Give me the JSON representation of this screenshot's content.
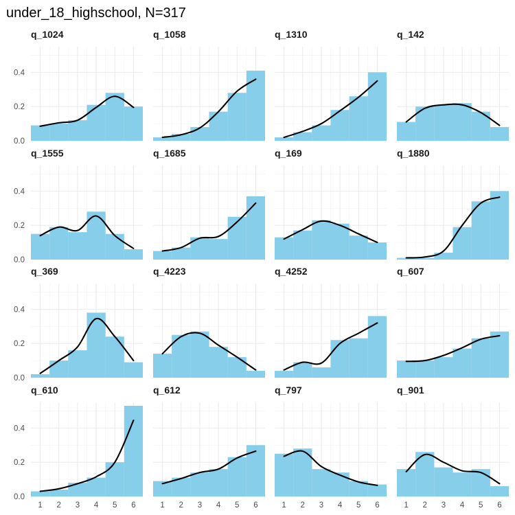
{
  "title": "under_18_highschool, N=317",
  "colors": {
    "bar": "#87CEEB",
    "density": "#000000",
    "grid_major": "#ebebeb",
    "grid_minor": "#f2f2f2",
    "background": "#ffffff"
  },
  "chart_data": {
    "type": "bar",
    "layout": "facet-grid 4x4, shared axes",
    "xlim": [
      0.5,
      6.5
    ],
    "ylim": [
      0,
      0.55
    ],
    "x_ticks": [
      1,
      2,
      3,
      4,
      5,
      6
    ],
    "x_tick_labels": [
      "1",
      "2",
      "3",
      "4",
      "5",
      "6"
    ],
    "y_ticks": [
      0,
      0.2,
      0.4
    ],
    "y_tick_labels": [
      "0.0",
      "0.2",
      "0.4"
    ],
    "grid": true,
    "legend": "none",
    "categories": [
      1,
      2,
      3,
      4,
      5,
      6
    ],
    "facets": [
      {
        "name": "q_1024",
        "bars": [
          0.09,
          0.1,
          0.12,
          0.21,
          0.28,
          0.2
        ],
        "density": [
          0.085,
          0.105,
          0.12,
          0.195,
          0.26,
          0.195
        ]
      },
      {
        "name": "q_1058",
        "bars": [
          0.02,
          0.04,
          0.08,
          0.17,
          0.28,
          0.41
        ],
        "density": [
          0.02,
          0.035,
          0.075,
          0.17,
          0.29,
          0.36
        ]
      },
      {
        "name": "q_1310",
        "bars": [
          0.02,
          0.05,
          0.09,
          0.18,
          0.26,
          0.4
        ],
        "density": [
          0.02,
          0.055,
          0.1,
          0.175,
          0.255,
          0.35
        ]
      },
      {
        "name": "q_142",
        "bars": [
          0.11,
          0.2,
          0.21,
          0.22,
          0.17,
          0.08
        ],
        "density": [
          0.11,
          0.19,
          0.21,
          0.21,
          0.165,
          0.09
        ]
      },
      {
        "name": "q_1555",
        "bars": [
          0.15,
          0.19,
          0.16,
          0.28,
          0.15,
          0.06
        ],
        "density": [
          0.14,
          0.19,
          0.17,
          0.255,
          0.14,
          0.065
        ]
      },
      {
        "name": "q_1685",
        "bars": [
          0.05,
          0.07,
          0.13,
          0.12,
          0.25,
          0.37
        ],
        "density": [
          0.05,
          0.07,
          0.125,
          0.135,
          0.22,
          0.33
        ]
      },
      {
        "name": "q_169",
        "bars": [
          0.13,
          0.17,
          0.23,
          0.21,
          0.14,
          0.1
        ],
        "density": [
          0.12,
          0.175,
          0.225,
          0.2,
          0.15,
          0.1
        ]
      },
      {
        "name": "q_1880",
        "bars": [
          0.01,
          0.01,
          0.04,
          0.19,
          0.34,
          0.4
        ],
        "density": [
          0.01,
          0.015,
          0.05,
          0.2,
          0.33,
          0.365
        ]
      },
      {
        "name": "q_369",
        "bars": [
          0.02,
          0.1,
          0.16,
          0.38,
          0.24,
          0.09
        ],
        "density": [
          0.025,
          0.1,
          0.18,
          0.345,
          0.24,
          0.1
        ]
      },
      {
        "name": "q_4223",
        "bars": [
          0.14,
          0.25,
          0.27,
          0.18,
          0.12,
          0.04
        ],
        "density": [
          0.14,
          0.24,
          0.26,
          0.19,
          0.12,
          0.045
        ]
      },
      {
        "name": "q_4252",
        "bars": [
          0.04,
          0.09,
          0.06,
          0.22,
          0.23,
          0.36
        ],
        "density": [
          0.045,
          0.09,
          0.085,
          0.2,
          0.26,
          0.32
        ]
      },
      {
        "name": "q_607",
        "bars": [
          0.1,
          0.1,
          0.12,
          0.17,
          0.23,
          0.27
        ],
        "density": [
          0.095,
          0.1,
          0.13,
          0.175,
          0.225,
          0.245
        ]
      },
      {
        "name": "q_610",
        "bars": [
          0.03,
          0.04,
          0.08,
          0.11,
          0.2,
          0.53
        ],
        "density": [
          0.03,
          0.045,
          0.075,
          0.115,
          0.2,
          0.445
        ]
      },
      {
        "name": "q_612",
        "bars": [
          0.09,
          0.11,
          0.14,
          0.16,
          0.23,
          0.3
        ],
        "density": [
          0.075,
          0.105,
          0.14,
          0.16,
          0.225,
          0.265
        ]
      },
      {
        "name": "q_797",
        "bars": [
          0.25,
          0.28,
          0.16,
          0.14,
          0.09,
          0.07
        ],
        "density": [
          0.235,
          0.265,
          0.175,
          0.125,
          0.085,
          0.065
        ]
      },
      {
        "name": "q_901",
        "bars": [
          0.16,
          0.26,
          0.17,
          0.14,
          0.16,
          0.06
        ],
        "density": [
          0.145,
          0.245,
          0.2,
          0.15,
          0.14,
          0.075
        ]
      }
    ]
  }
}
